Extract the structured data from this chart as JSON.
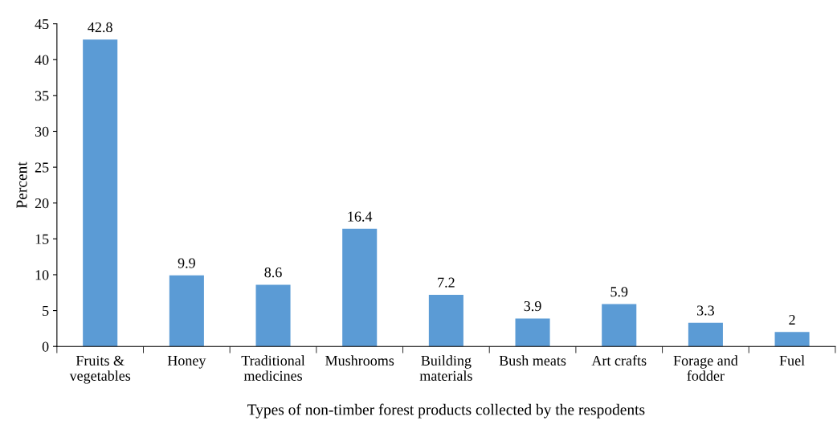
{
  "chart_data": {
    "type": "bar",
    "xlabel": "Types of non-timber forest products collected by the respodents",
    "ylabel": "Percent",
    "categories": [
      "Fruits &\nvegetables",
      "Honey",
      "Traditional\nmedicines",
      "Mushrooms",
      "Building\nmaterials",
      "Bush meats",
      "Art crafts",
      "Forage and\nfodder",
      "Fuel"
    ],
    "values": [
      42.8,
      9.9,
      8.6,
      16.4,
      7.2,
      3.9,
      5.9,
      3.3,
      2
    ],
    "color": "#5b9bd5",
    "ylim": [
      0,
      45
    ],
    "yticks": [
      0,
      5,
      10,
      15,
      20,
      25,
      30,
      35,
      40,
      45
    ],
    "data_labels": true,
    "grid": false
  }
}
